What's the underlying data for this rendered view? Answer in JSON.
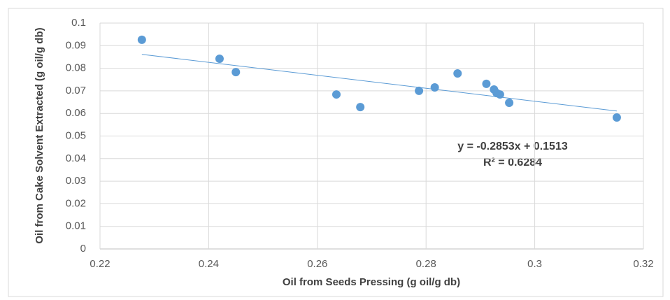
{
  "chart_data": {
    "type": "scatter",
    "x_label": "Oil from Seeds Pressing (g oil/g db)",
    "y_label": "Oil from Cake Solvent Extracted (g oil/g db)",
    "annotations": [
      "y = -0.2853x + 0.1513",
      "R² = 0.6284"
    ],
    "series": [
      {
        "color": "#5b9bd5",
        "x": [
          0.2277,
          0.242,
          0.245,
          0.2635,
          0.2679,
          0.2787,
          0.2816,
          0.2858,
          0.2911,
          0.2925,
          0.293,
          0.2936,
          0.2953,
          0.3151
        ],
        "values": [
          0.0926,
          0.0842,
          0.0783,
          0.0684,
          0.0628,
          0.07,
          0.0715,
          0.0777,
          0.0731,
          0.0706,
          0.069,
          0.0684,
          0.0647,
          0.0582
        ]
      }
    ],
    "trendline": true,
    "xlim": [
      0.22,
      0.32
    ],
    "xticks": [
      0.22,
      0.24,
      0.26,
      0.28,
      0.3,
      0.32
    ],
    "ylim": [
      0,
      0.1
    ],
    "yticks": [
      0,
      0.01,
      0.02,
      0.03,
      0.04,
      0.05,
      0.06,
      0.07,
      0.08,
      0.09,
      0.1
    ],
    "grid": true
  }
}
